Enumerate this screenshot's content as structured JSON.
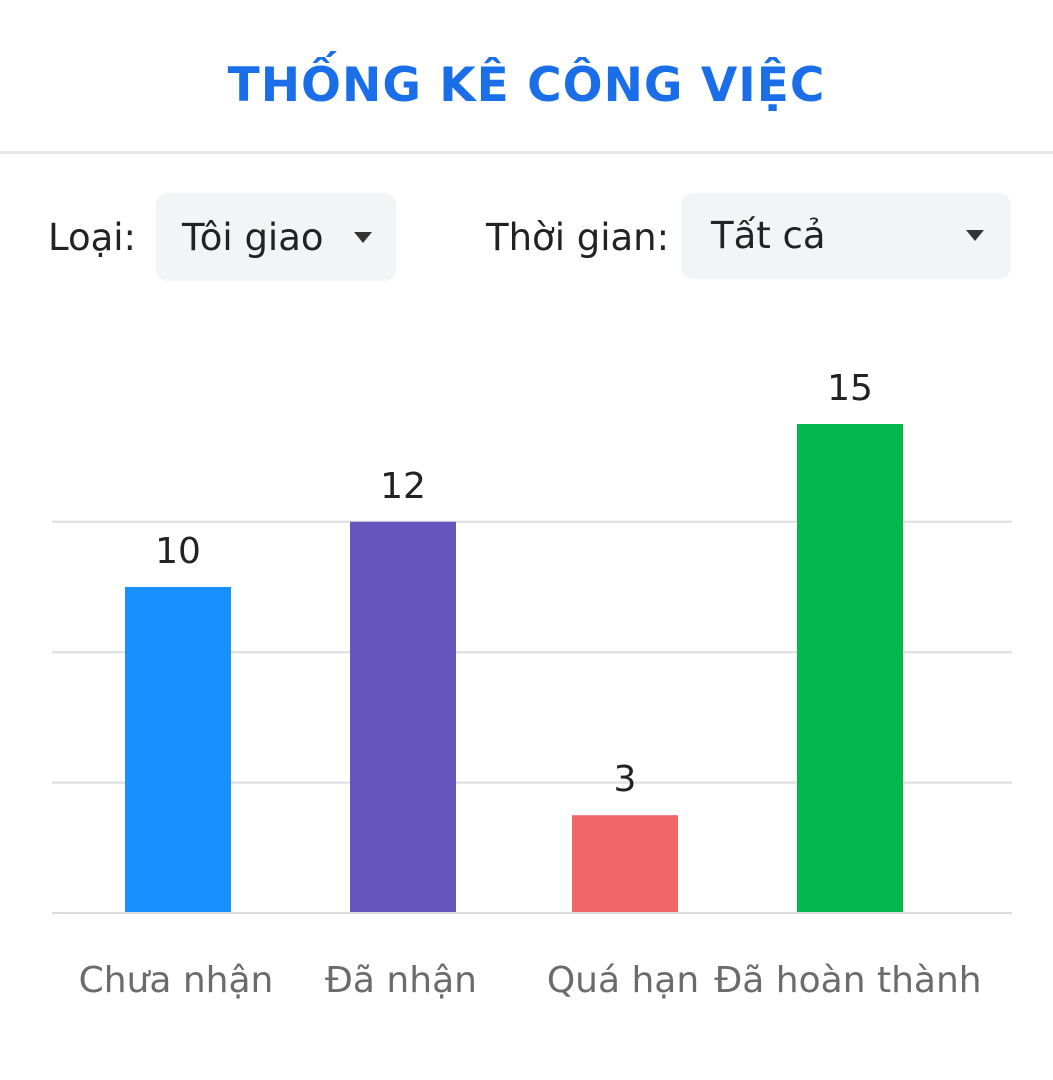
{
  "header": {
    "title": "THỐNG KÊ CÔNG VIỆC"
  },
  "filters": {
    "type_label": "Loại:",
    "type_value": "Tôi giao",
    "time_label": "Thời gian:",
    "time_value": "Tất cả"
  },
  "colors": {
    "title": "#1a6fe8",
    "gridline": "#dcdde0"
  },
  "chart_data": {
    "type": "bar",
    "categories": [
      "Chưa nhận",
      "Đã nhận",
      "Quá hạn",
      "Đã hoàn thành"
    ],
    "values": [
      10,
      12,
      3,
      15
    ],
    "colors": [
      "#1890ff",
      "#6655bd",
      "#f06566",
      "#03b74e"
    ],
    "data_labels": true,
    "ylim": [
      0,
      15
    ],
    "grid": true,
    "legend": "none"
  }
}
